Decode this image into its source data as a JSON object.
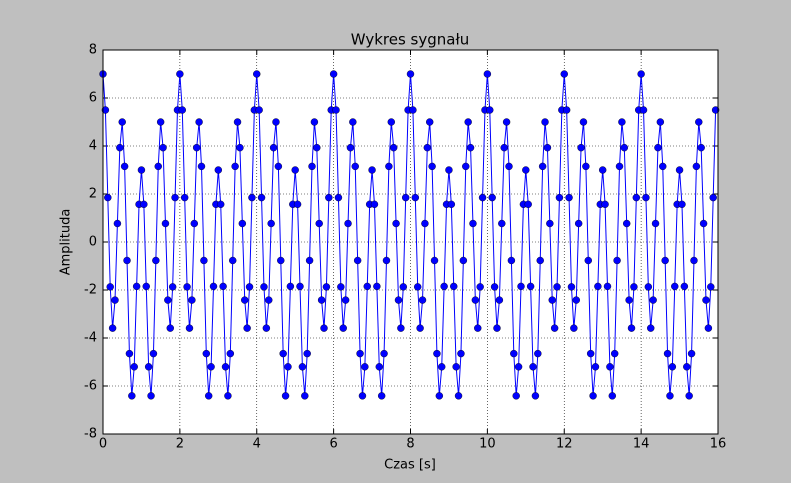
{
  "chart_data": {
    "type": "line",
    "title": "Wykres sygnału",
    "xlabel": "Czas [s]",
    "ylabel": "Amplituda",
    "x": [
      0,
      0.0625,
      0.125,
      0.1875,
      0.25,
      0.3125,
      0.375,
      0.4375,
      0.5,
      0.5625,
      0.625,
      0.6875,
      0.75,
      0.8125,
      0.875,
      0.9375,
      1,
      1.0625,
      1.125,
      1.1875,
      1.25,
      1.3125,
      1.375,
      1.4375,
      1.5,
      1.5625,
      1.625,
      1.6875,
      1.75,
      1.8125,
      1.875,
      1.9375,
      2,
      2.0625,
      2.125,
      2.1875,
      2.25,
      2.3125,
      2.375,
      2.4375,
      2.5,
      2.5625,
      2.625,
      2.6875,
      2.75,
      2.8125,
      2.875,
      2.9375,
      3,
      3.0625,
      3.125,
      3.1875,
      3.25,
      3.3125,
      3.375,
      3.4375,
      3.5,
      3.5625,
      3.625,
      3.6875,
      3.75,
      3.8125,
      3.875,
      3.9375,
      4,
      4.0625,
      4.125,
      4.1875,
      4.25,
      4.3125,
      4.375,
      4.4375,
      4.5,
      4.5625,
      4.625,
      4.6875,
      4.75,
      4.8125,
      4.875,
      4.9375,
      5,
      5.0625,
      5.125,
      5.1875,
      5.25,
      5.3125,
      5.375,
      5.4375,
      5.5,
      5.5625,
      5.625,
      5.6875,
      5.75,
      5.8125,
      5.875,
      5.9375,
      6,
      6.0625,
      6.125,
      6.1875,
      6.25,
      6.3125,
      6.375,
      6.4375,
      6.5,
      6.5625,
      6.625,
      6.6875,
      6.75,
      6.8125,
      6.875,
      6.9375,
      7,
      7.0625,
      7.125,
      7.1875,
      7.25,
      7.3125,
      7.375,
      7.4375,
      7.5,
      7.5625,
      7.625,
      7.6875,
      7.75,
      7.8125,
      7.875,
      7.9375,
      8,
      8.0625,
      8.125,
      8.1875,
      8.25,
      8.3125,
      8.375,
      8.4375,
      8.5,
      8.5625,
      8.625,
      8.6875,
      8.75,
      8.8125,
      8.875,
      8.9375,
      9,
      9.0625,
      9.125,
      9.1875,
      9.25,
      9.3125,
      9.375,
      9.4375,
      9.5,
      9.5625,
      9.625,
      9.6875,
      9.75,
      9.8125,
      9.875,
      9.9375,
      10,
      10.0625,
      10.125,
      10.1875,
      10.25,
      10.3125,
      10.375,
      10.4375,
      10.5,
      10.5625,
      10.625,
      10.6875,
      10.75,
      10.8125,
      10.875,
      10.9375,
      11,
      11.0625,
      11.125,
      11.1875,
      11.25,
      11.3125,
      11.375,
      11.4375,
      11.5,
      11.5625,
      11.625,
      11.6875,
      11.75,
      11.8125,
      11.875,
      11.9375,
      12,
      12.0625,
      12.125,
      12.1875,
      12.25,
      12.3125,
      12.375,
      12.4375,
      12.5,
      12.5625,
      12.625,
      12.6875,
      12.75,
      12.8125,
      12.875,
      12.9375,
      13,
      13.0625,
      13.125,
      13.1875,
      13.25,
      13.3125,
      13.375,
      13.4375,
      13.5,
      13.5625,
      13.625,
      13.6875,
      13.75,
      13.8125,
      13.875,
      13.9375,
      14,
      14.0625,
      14.125,
      14.1875,
      14.25,
      14.3125,
      14.375,
      14.4375,
      14.5,
      14.5625,
      14.625,
      14.6875,
      14.75,
      14.8125,
      14.875,
      14.9375,
      15,
      15.0625,
      15.125,
      15.1875,
      15.25,
      15.3125,
      15.375,
      15.4375,
      15.5,
      15.5625,
      15.625,
      15.6875,
      15.75,
      15.8125,
      15.875,
      15.9375
    ],
    "values": [
      7,
      5.5,
      1.85,
      -1.87,
      -3.59,
      -2.42,
      0.77,
      3.93,
      5,
      3.15,
      -0.77,
      -4.65,
      -6.41,
      -5.2,
      -1.85,
      1.57,
      3,
      1.57,
      -1.85,
      -5.2,
      -6.41,
      -4.65,
      -0.77,
      3.15,
      5,
      3.93,
      0.77,
      -2.42,
      -3.59,
      -1.87,
      1.85,
      5.5,
      7,
      5.5,
      1.85,
      -1.87,
      -3.59,
      -2.42,
      0.77,
      3.93,
      5,
      3.15,
      -0.77,
      -4.65,
      -6.41,
      -5.2,
      -1.85,
      1.57,
      3,
      1.57,
      -1.85,
      -5.2,
      -6.41,
      -4.65,
      -0.77,
      3.15,
      5,
      3.93,
      0.77,
      -2.42,
      -3.59,
      -1.87,
      1.85,
      5.5,
      7,
      5.5,
      1.85,
      -1.87,
      -3.59,
      -2.42,
      0.77,
      3.93,
      5,
      3.15,
      -0.77,
      -4.65,
      -6.41,
      -5.2,
      -1.85,
      1.57,
      3,
      1.57,
      -1.85,
      -5.2,
      -6.41,
      -4.65,
      -0.77,
      3.15,
      5,
      3.93,
      0.77,
      -2.42,
      -3.59,
      -1.87,
      1.85,
      5.5,
      7,
      5.5,
      1.85,
      -1.87,
      -3.59,
      -2.42,
      0.77,
      3.93,
      5,
      3.15,
      -0.77,
      -4.65,
      -6.41,
      -5.2,
      -1.85,
      1.57,
      3,
      1.57,
      -1.85,
      -5.2,
      -6.41,
      -4.65,
      -0.77,
      3.15,
      5,
      3.93,
      0.77,
      -2.42,
      -3.59,
      -1.87,
      1.85,
      5.5,
      7,
      5.5,
      1.85,
      -1.87,
      -3.59,
      -2.42,
      0.77,
      3.93,
      5,
      3.15,
      -0.77,
      -4.65,
      -6.41,
      -5.2,
      -1.85,
      1.57,
      3,
      1.57,
      -1.85,
      -5.2,
      -6.41,
      -4.65,
      -0.77,
      3.15,
      5,
      3.93,
      0.77,
      -2.42,
      -3.59,
      -1.87,
      1.85,
      5.5,
      7,
      5.5,
      1.85,
      -1.87,
      -3.59,
      -2.42,
      0.77,
      3.93,
      5,
      3.15,
      -0.77,
      -4.65,
      -6.41,
      -5.2,
      -1.85,
      1.57,
      3,
      1.57,
      -1.85,
      -5.2,
      -6.41,
      -4.65,
      -0.77,
      3.15,
      5,
      3.93,
      0.77,
      -2.42,
      -3.59,
      -1.87,
      1.85,
      5.5,
      7,
      5.5,
      1.85,
      -1.87,
      -3.59,
      -2.42,
      0.77,
      3.93,
      5,
      3.15,
      -0.77,
      -4.65,
      -6.41,
      -5.2,
      -1.85,
      1.57,
      3,
      1.57,
      -1.85,
      -5.2,
      -6.41,
      -4.65,
      -0.77,
      3.15,
      5,
      3.93,
      0.77,
      -2.42,
      -3.59,
      -1.87,
      1.85,
      5.5,
      7,
      5.5,
      1.85,
      -1.87,
      -3.59,
      -2.42,
      0.77,
      3.93,
      5,
      3.15,
      -0.77,
      -4.65,
      -6.41,
      -5.2,
      -1.85,
      1.57,
      3,
      1.57,
      -1.85,
      -5.2,
      -6.41,
      -4.65,
      -0.77,
      3.15,
      5,
      3.93,
      0.77,
      -2.42,
      -3.59,
      -1.87,
      1.85,
      5.5
    ],
    "color": "#0000ff",
    "marker": "o",
    "xlim": [
      0,
      16
    ],
    "ylim": [
      -8,
      8
    ],
    "xticks": [
      0,
      2,
      4,
      6,
      8,
      10,
      12,
      14,
      16
    ],
    "yticks": [
      -8,
      -6,
      -4,
      -2,
      0,
      2,
      4,
      6,
      8
    ],
    "grid": true
  }
}
